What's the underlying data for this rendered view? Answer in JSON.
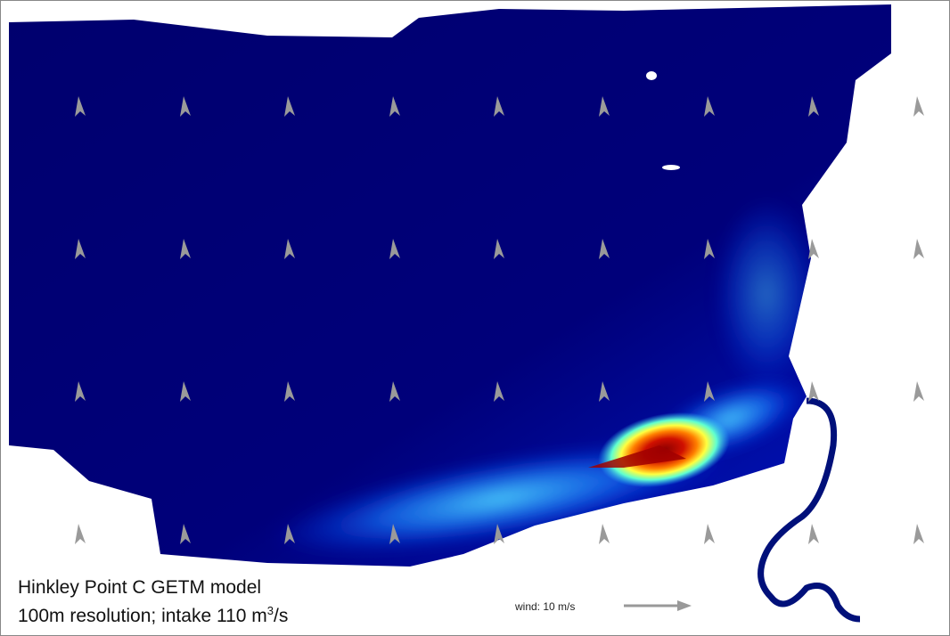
{
  "caption": {
    "line1": "Hinkley Point C GETM model",
    "line2": {
      "text": "100m resolution; intake 110 m",
      "sup": "3",
      "tail": "/s"
    }
  },
  "legend": {
    "label": "wind: 10 m/s"
  }
}
